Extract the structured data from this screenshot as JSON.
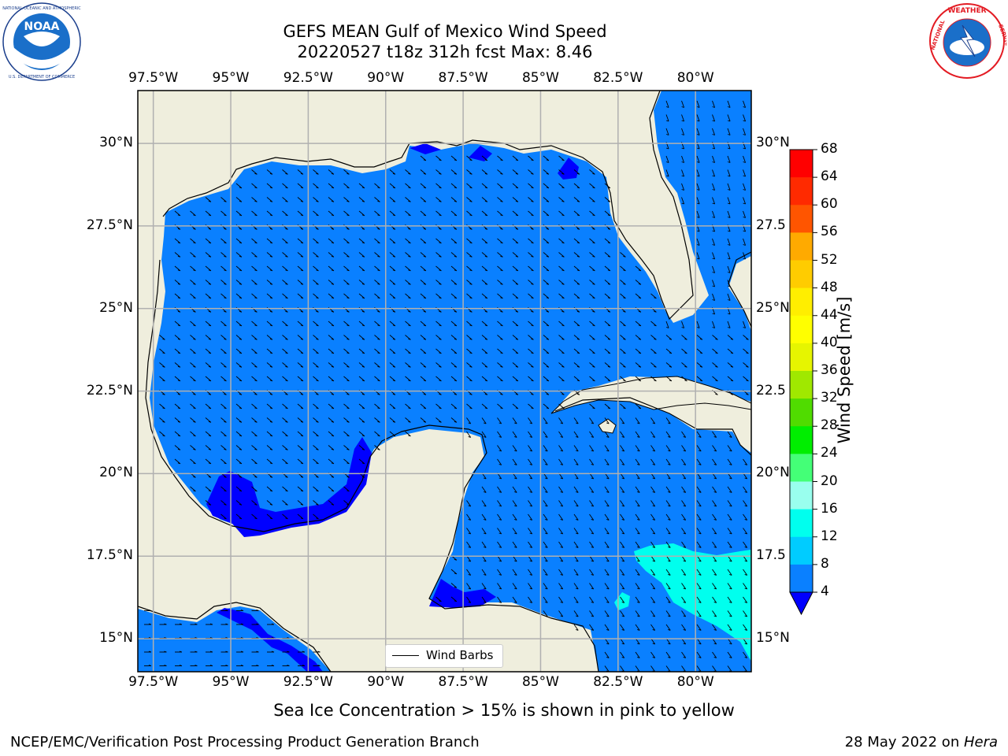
{
  "title": {
    "line1": "GEFS MEAN Gulf of Mexico Wind Speed",
    "line2": "20220527 t18z 312h fcst   Max: 8.46"
  },
  "logos": {
    "left": {
      "name": "noaa-logo",
      "text": "NOAA",
      "ring_text": "NATIONAL OCEANIC AND ATMOSPHERIC ADMINISTRATION · U.S. DEPARTMENT OF COMMERCE",
      "color": "#1a6fc9"
    },
    "right": {
      "name": "nws-logo",
      "ring_text": "NATIONAL WEATHER SERVICE",
      "color": "#e31b23"
    }
  },
  "map": {
    "lon_labels": [
      "97.5°W",
      "95°W",
      "92.5°W",
      "90°W",
      "87.5°W",
      "85°W",
      "82.5°W",
      "80°W"
    ],
    "lat_labels_left": [
      "30°N",
      "27.5°N",
      "25°N",
      "22.5°N",
      "20°N",
      "17.5°N",
      "15°N"
    ],
    "lat_labels_right": [
      "30°N",
      "27.5",
      "25°N",
      "22.5",
      "20°N",
      "17.5",
      "15°N"
    ],
    "extent": {
      "lon_min": -98,
      "lon_max": -78.2,
      "lat_min": 14,
      "lat_max": 31.6
    },
    "colors": {
      "land": "#efeedd",
      "ocean_default": "#0a80ff",
      "grid": "#b0b0b0",
      "coast": "#000000"
    }
  },
  "colorbar": {
    "label": "Wind Speed [m/s]",
    "ticks": [
      "68",
      "64",
      "60",
      "56",
      "52",
      "48",
      "44",
      "40",
      "36",
      "32",
      "28",
      "24",
      "20",
      "16",
      "12",
      "8",
      "4"
    ],
    "colors": [
      "#ff0000",
      "#ff2a00",
      "#ff5500",
      "#ff8000",
      "#ffaa00",
      "#ffcc00",
      "#ffee00",
      "#ffff00",
      "#e6f500",
      "#c8f000",
      "#a0e800",
      "#50dc00",
      "#00ee00",
      "#44ff77",
      "#99ffee",
      "#55ffff",
      "#00ffee",
      "#00ccff",
      "#0a80ff"
    ],
    "under_color": "#0000ff"
  },
  "legend": {
    "label": "Wind Barbs"
  },
  "caption": "Sea Ice Concentration > 15% is shown in pink to yellow",
  "footer": {
    "left": "NCEP/EMC/Verification Post Processing Product Generation Branch",
    "right_prefix": "28 May 2022 on ",
    "right_machine": "Hera"
  }
}
